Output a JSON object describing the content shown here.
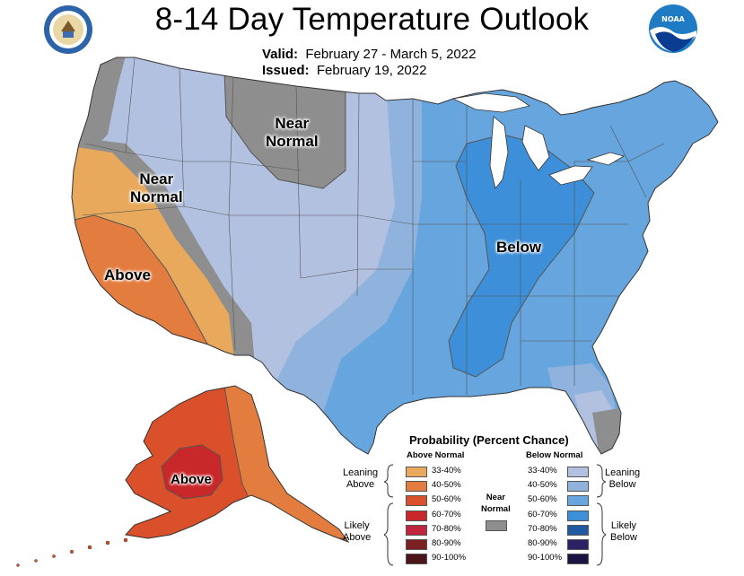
{
  "header": {
    "title": "8-14 Day Temperature Outlook",
    "valid_label": "Valid:",
    "valid_value": "February 27 - March 5, 2022",
    "issued_label": "Issued:",
    "issued_value": "February 19, 2022"
  },
  "logos": {
    "left": "department-of-commerce-seal",
    "right": "noaa-logo"
  },
  "map_labels": {
    "near_normal_north": "Near\nNormal",
    "near_normal_west": "Near\nNormal",
    "above_west": "Above",
    "below_east": "Below",
    "above_alaska": "Above"
  },
  "legend": {
    "title": "Probability (Percent Chance)",
    "above_header": "Above Normal",
    "below_header": "Below Normal",
    "near_normal": "Near\nNormal",
    "leaning_above": "Leaning\nAbove",
    "likely_above": "Likely\nAbove",
    "leaning_below": "Leaning\nBelow",
    "likely_below": "Likely\nBelow",
    "above_rows": [
      {
        "label": "33-40%",
        "color": "#e8a95c"
      },
      {
        "label": "40-50%",
        "color": "#e37d3f"
      },
      {
        "label": "50-60%",
        "color": "#d9502b"
      },
      {
        "label": "60-70%",
        "color": "#c9282a"
      },
      {
        "label": "70-80%",
        "color": "#c0243e"
      },
      {
        "label": "80-90%",
        "color": "#7d2021"
      },
      {
        "label": "90-100%",
        "color": "#4a1418"
      }
    ],
    "below_rows": [
      {
        "label": "33-40%",
        "color": "#b3c1e1"
      },
      {
        "label": "40-50%",
        "color": "#90b3dd"
      },
      {
        "label": "50-60%",
        "color": "#66a5dd"
      },
      {
        "label": "60-70%",
        "color": "#3c8fd8"
      },
      {
        "label": "70-80%",
        "color": "#1f5aa0"
      },
      {
        "label": "80-90%",
        "color": "#2a2166"
      },
      {
        "label": "90-100%",
        "color": "#1c1440"
      }
    ],
    "near_color": "#8e8e8e"
  }
}
